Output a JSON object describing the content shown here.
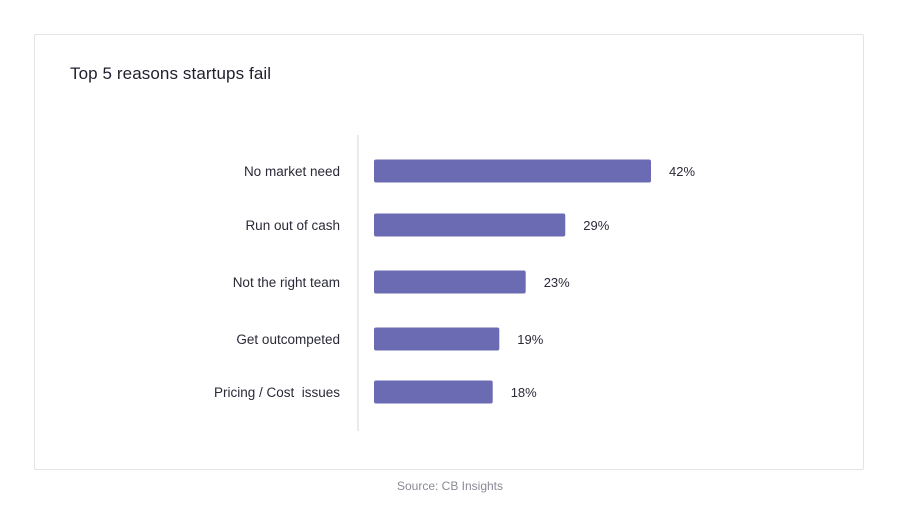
{
  "chart_data": {
    "type": "bar",
    "orientation": "horizontal",
    "title": "Top 5 reasons startups fail",
    "categories": [
      "No market need",
      "Run out of cash",
      "Not the right team",
      "Get outcompeted",
      "Pricing / Cost  issues"
    ],
    "values": [
      42,
      29,
      23,
      19,
      18
    ],
    "value_labels": [
      "42%",
      "29%",
      "23%",
      "19%",
      "18%"
    ],
    "xlim": [
      0,
      46
    ],
    "bar_color": "#6b6bb3",
    "grid": false,
    "legend": "none"
  },
  "footer": {
    "source": "Source: CB Insights"
  }
}
